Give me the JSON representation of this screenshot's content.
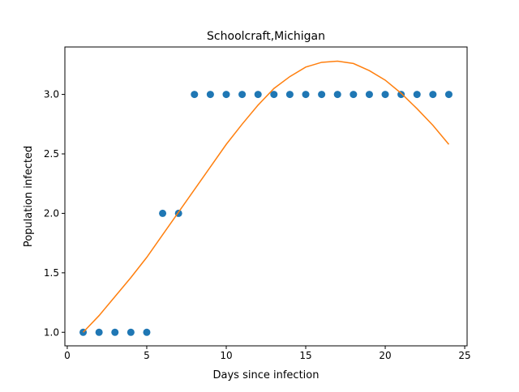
{
  "chart_data": {
    "type": "scatter",
    "title": "Schoolcraft,Michigan",
    "xlabel": "Days since infection",
    "ylabel": "Population infected",
    "xlim": [
      -0.15,
      25.15
    ],
    "ylim": [
      0.886,
      3.399
    ],
    "xticks": [
      0,
      5,
      10,
      15,
      20,
      25
    ],
    "xtick_labels": [
      "0",
      "5",
      "10",
      "15",
      "20",
      "25"
    ],
    "yticks": [
      1.0,
      1.5,
      2.0,
      2.5,
      3.0
    ],
    "ytick_labels": [
      "1.0",
      "1.5",
      "2.0",
      "2.5",
      "3.0"
    ],
    "grid": false,
    "series": [
      {
        "kind": "scatter",
        "color": "#1f77b4",
        "x": [
          1,
          2,
          3,
          4,
          5,
          6,
          7,
          8,
          9,
          10,
          11,
          12,
          13,
          14,
          15,
          16,
          17,
          18,
          19,
          20,
          21,
          22,
          23,
          24
        ],
        "y": [
          1,
          1,
          1,
          1,
          1,
          2,
          2,
          3,
          3,
          3,
          3,
          3,
          3,
          3,
          3,
          3,
          3,
          3,
          3,
          3,
          3,
          3,
          3,
          3
        ]
      },
      {
        "kind": "line",
        "color": "#ff7f0e",
        "x": [
          1,
          2,
          3,
          4,
          5,
          6,
          7,
          8,
          9,
          10,
          11,
          12,
          13,
          14,
          15,
          16,
          17,
          18,
          19,
          20,
          21,
          22,
          23,
          24
        ],
        "y": [
          1.0,
          1.14,
          1.3,
          1.46,
          1.63,
          1.82,
          2.01,
          2.2,
          2.39,
          2.58,
          2.75,
          2.91,
          3.05,
          3.15,
          3.23,
          3.27,
          3.28,
          3.26,
          3.2,
          3.12,
          3.01,
          2.88,
          2.74,
          2.58
        ]
      }
    ]
  }
}
